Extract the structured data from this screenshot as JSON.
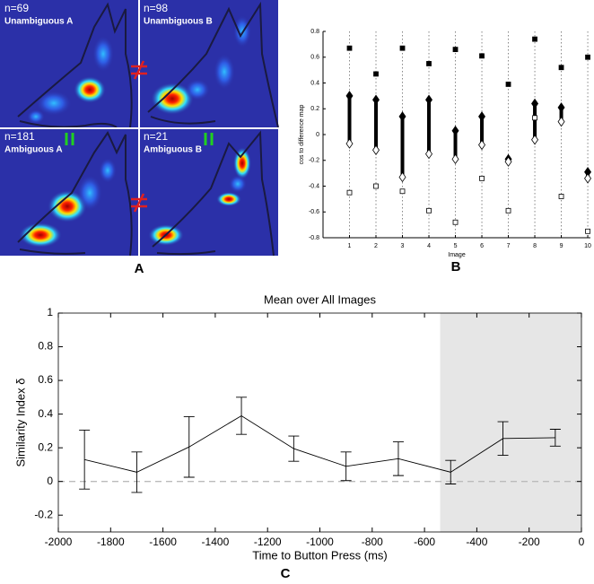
{
  "panel_a": {
    "quadrants": [
      {
        "n": "n=69",
        "label": "Unambiguous A"
      },
      {
        "n": "n=98",
        "label": "Unambiguous B"
      },
      {
        "n": "n=181",
        "label": "Ambiguous A"
      },
      {
        "n": "n=21",
        "label": "Ambiguous B"
      }
    ]
  },
  "panel_labels": [
    "A",
    "B",
    "C"
  ],
  "chart_data": [
    {
      "type": "marker_range",
      "ylabel": "cos to difference map",
      "xlabel": "Image",
      "x": [
        1,
        2,
        3,
        4,
        5,
        6,
        7,
        8,
        9,
        10
      ],
      "xlim": [
        0,
        10.1
      ],
      "xticks": [
        1,
        2,
        3,
        4,
        5,
        6,
        7,
        8,
        9,
        10
      ],
      "ylim": [
        -0.8,
        0.8
      ],
      "yticks": [
        -0.8,
        -0.6,
        -0.4,
        -0.2,
        0,
        0.2,
        0.4,
        0.6,
        0.8
      ],
      "grid": "x-dotted",
      "color": "#000000",
      "series": [
        {
          "marker": "square",
          "filled": true,
          "values": [
            0.67,
            0.47,
            0.67,
            0.55,
            0.66,
            0.61,
            0.39,
            0.74,
            0.52,
            0.6
          ]
        },
        {
          "marker": "diamond",
          "filled": true,
          "values": [
            0.3,
            0.27,
            0.14,
            0.27,
            0.03,
            0.14,
            -0.19,
            0.24,
            0.21,
            -0.29
          ]
        },
        {
          "marker": "diamond",
          "filled": false,
          "values": [
            -0.07,
            -0.12,
            -0.33,
            -0.15,
            -0.19,
            -0.08,
            -0.21,
            -0.04,
            0.1,
            -0.34
          ]
        },
        {
          "marker": "square",
          "filled": false,
          "values": [
            -0.45,
            -0.4,
            -0.44,
            -0.59,
            -0.68,
            -0.34,
            -0.59,
            0.13,
            -0.48,
            -0.75
          ]
        }
      ]
    },
    {
      "type": "errorline",
      "title": "Mean over All Images",
      "ylabel": "Similarity Index δ",
      "xlabel": "Time to Button Press (ms)",
      "x": [
        -1900,
        -1700,
        -1500,
        -1300,
        -1100,
        -900,
        -700,
        -500,
        -300,
        -100
      ],
      "values": [
        0.13,
        0.055,
        0.205,
        0.39,
        0.195,
        0.09,
        0.135,
        0.055,
        0.255,
        0.26
      ],
      "errors": [
        0.175,
        0.12,
        0.18,
        0.11,
        0.075,
        0.085,
        0.1,
        0.07,
        0.1,
        0.05
      ],
      "xlim": [
        -2000,
        0
      ],
      "xticks": [
        -2000,
        -1800,
        -1600,
        -1400,
        -1200,
        -1000,
        -800,
        -600,
        -400,
        -200,
        0
      ],
      "ylim": [
        -0.3,
        1
      ],
      "yticks": [
        -0.2,
        0,
        0.2,
        0.4,
        0.6,
        0.8,
        1
      ],
      "shade": [
        -540,
        0
      ],
      "reference_line": 0,
      "color": "#000000"
    }
  ]
}
